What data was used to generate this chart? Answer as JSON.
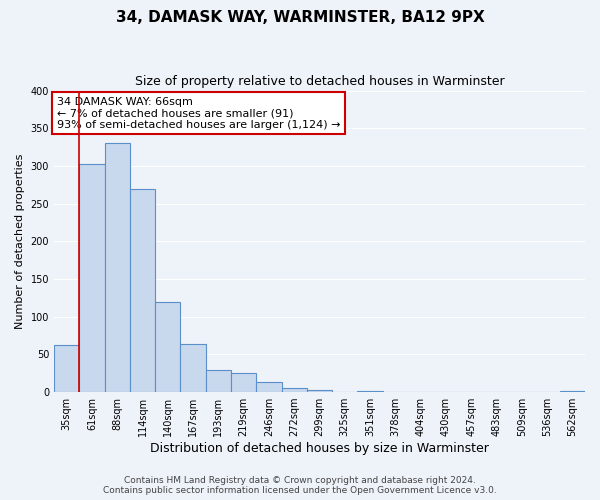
{
  "title": "34, DAMASK WAY, WARMINSTER, BA12 9PX",
  "subtitle": "Size of property relative to detached houses in Warminster",
  "xlabel": "Distribution of detached houses by size in Warminster",
  "ylabel": "Number of detached properties",
  "bar_labels": [
    "35sqm",
    "61sqm",
    "88sqm",
    "114sqm",
    "140sqm",
    "167sqm",
    "193sqm",
    "219sqm",
    "246sqm",
    "272sqm",
    "299sqm",
    "325sqm",
    "351sqm",
    "378sqm",
    "404sqm",
    "430sqm",
    "457sqm",
    "483sqm",
    "509sqm",
    "536sqm",
    "562sqm"
  ],
  "bar_heights": [
    62,
    303,
    330,
    270,
    120,
    64,
    29,
    25,
    14,
    5,
    3,
    0,
    2,
    0,
    0,
    0,
    0,
    0,
    0,
    0,
    2
  ],
  "bar_color": "#c9d9ed",
  "bar_edgecolor": "#5b8fc9",
  "bar_linewidth": 0.8,
  "vline_x_index": 1,
  "vline_color": "#cc0000",
  "annotation_title": "34 DAMASK WAY: 66sqm",
  "annotation_line1": "← 7% of detached houses are smaller (91)",
  "annotation_line2": "93% of semi-detached houses are larger (1,124) →",
  "annotation_box_facecolor": "#ffffff",
  "annotation_box_edgecolor": "#cc0000",
  "ylim": [
    0,
    400
  ],
  "yticks": [
    0,
    50,
    100,
    150,
    200,
    250,
    300,
    350,
    400
  ],
  "background_color": "#eef2f9",
  "grid_color": "#ffffff",
  "footer_line1": "Contains HM Land Registry data © Crown copyright and database right 2024.",
  "footer_line2": "Contains public sector information licensed under the Open Government Licence v3.0.",
  "title_fontsize": 11,
  "subtitle_fontsize": 9,
  "xlabel_fontsize": 9,
  "ylabel_fontsize": 8,
  "tick_fontsize": 7,
  "annotation_fontsize": 8,
  "footer_fontsize": 6.5
}
